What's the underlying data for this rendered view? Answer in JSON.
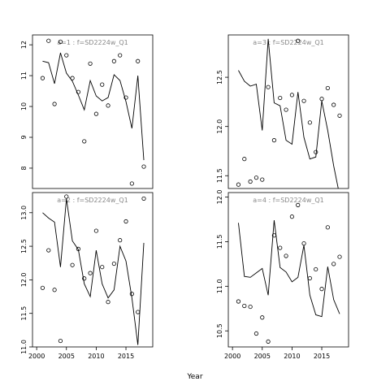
{
  "xlabel": "Year",
  "chart_data": [
    {
      "type": "line",
      "title": "a=1  :  f=SD2224w_Q1",
      "x": [
        2001,
        2002,
        2003,
        2004,
        2005,
        2006,
        2007,
        2008,
        2009,
        2010,
        2011,
        2012,
        2013,
        2014,
        2015,
        2016,
        2017,
        2018
      ],
      "series": [
        {
          "mode": "markers",
          "color": "#000000",
          "values": [
            10.92,
            12.13,
            10.08,
            12.1,
            11.66,
            10.92,
            10.47,
            8.87,
            11.39,
            9.76,
            10.71,
            10.03,
            11.47,
            11.66,
            10.29,
            7.5,
            11.47,
            8.05
          ]
        },
        {
          "mode": "lines",
          "color": "#000000",
          "values": [
            11.47,
            11.42,
            10.74,
            11.74,
            11.08,
            10.82,
            10.37,
            9.89,
            10.84,
            10.34,
            10.18,
            10.29,
            11.03,
            10.84,
            10.16,
            9.29,
            11.0,
            8.26
          ]
        }
      ],
      "xlim": [
        1999.3,
        2019.5
      ],
      "ylim": [
        7.34,
        12.32
      ],
      "yticks": [
        8,
        9,
        10,
        11,
        12
      ]
    },
    {
      "type": "line",
      "title": "a=3  :  f=SD2224w_Q1",
      "x": [
        2001,
        2002,
        2003,
        2004,
        2005,
        2006,
        2007,
        2008,
        2009,
        2010,
        2011,
        2012,
        2013,
        2014,
        2015,
        2016,
        2017,
        2018
      ],
      "series": [
        {
          "mode": "markers",
          "color": "#000000",
          "values": [
            11.41,
            11.67,
            11.44,
            11.48,
            11.46,
            12.4,
            11.86,
            12.29,
            12.17,
            12.32,
            12.87,
            12.26,
            12.04,
            11.74,
            12.28,
            12.39,
            12.22,
            12.11
          ]
        },
        {
          "mode": "lines",
          "color": "#000000",
          "values": [
            12.57,
            12.46,
            12.41,
            12.43,
            11.96,
            12.89,
            12.24,
            12.21,
            11.86,
            11.82,
            12.35,
            11.89,
            11.67,
            11.69,
            12.26,
            11.96,
            11.6,
            11.3
          ]
        }
      ],
      "xlim": [
        1999.3,
        2019.5
      ],
      "ylim": [
        11.37,
        12.93
      ],
      "yticks": [
        11.5,
        {
          "value": 12,
          "label": "12.0"
        },
        12.5
      ]
    },
    {
      "type": "line",
      "title": "a=2  :  f=SD2224w_Q1",
      "x": [
        2001,
        2002,
        2003,
        2004,
        2005,
        2006,
        2007,
        2008,
        2009,
        2010,
        2011,
        2012,
        2013,
        2014,
        2015,
        2016,
        2017,
        2018
      ],
      "series": [
        {
          "mode": "markers",
          "color": "#000000",
          "values": [
            11.88,
            12.44,
            11.85,
            11.09,
            13.24,
            12.22,
            12.46,
            12.02,
            12.1,
            12.73,
            12.19,
            11.67,
            12.24,
            12.59,
            12.87,
            11.79,
            11.52,
            13.21
          ]
        },
        {
          "mode": "lines",
          "color": "#000000",
          "values": [
            13.0,
            12.92,
            12.86,
            12.19,
            13.21,
            12.58,
            12.45,
            11.94,
            11.75,
            12.44,
            11.94,
            11.73,
            11.85,
            12.5,
            12.28,
            11.73,
            11.03,
            12.55
          ]
        }
      ],
      "xlim": [
        1999.3,
        2019.5
      ],
      "ylim": [
        11.0,
        13.3
      ],
      "xticks": [
        2000,
        2005,
        2010,
        2015
      ],
      "yticks": [
        {
          "value": 11,
          "label": "11.0"
        },
        11.5,
        {
          "value": 12,
          "label": "12.0"
        },
        12.5,
        {
          "value": 13,
          "label": "13.0"
        }
      ]
    },
    {
      "type": "line",
      "title": "a=4  :  f=SD2224w_Q1",
      "x": [
        2001,
        2002,
        2003,
        2004,
        2005,
        2006,
        2007,
        2008,
        2009,
        2010,
        2011,
        2012,
        2013,
        2014,
        2015,
        2016,
        2017,
        2018
      ],
      "series": [
        {
          "mode": "markers",
          "color": "#000000",
          "values": [
            10.83,
            10.78,
            10.77,
            10.47,
            10.65,
            10.38,
            11.57,
            11.43,
            11.34,
            11.78,
            11.91,
            11.48,
            11.09,
            11.19,
            10.97,
            11.66,
            11.25,
            11.33
          ]
        },
        {
          "mode": "lines",
          "color": "#000000",
          "values": [
            11.71,
            11.11,
            11.1,
            11.15,
            11.2,
            10.9,
            11.74,
            11.21,
            11.16,
            11.05,
            11.1,
            11.46,
            10.9,
            10.68,
            10.66,
            11.22,
            10.85,
            10.69
          ]
        }
      ],
      "xlim": [
        1999.3,
        2019.5
      ],
      "ylim": [
        10.32,
        12.05
      ],
      "xticks": [
        2000,
        2005,
        2010,
        2015
      ],
      "yticks": [
        10.5,
        {
          "value": 11,
          "label": "11.0"
        },
        11.5,
        {
          "value": 12,
          "label": "12.0"
        }
      ]
    }
  ]
}
